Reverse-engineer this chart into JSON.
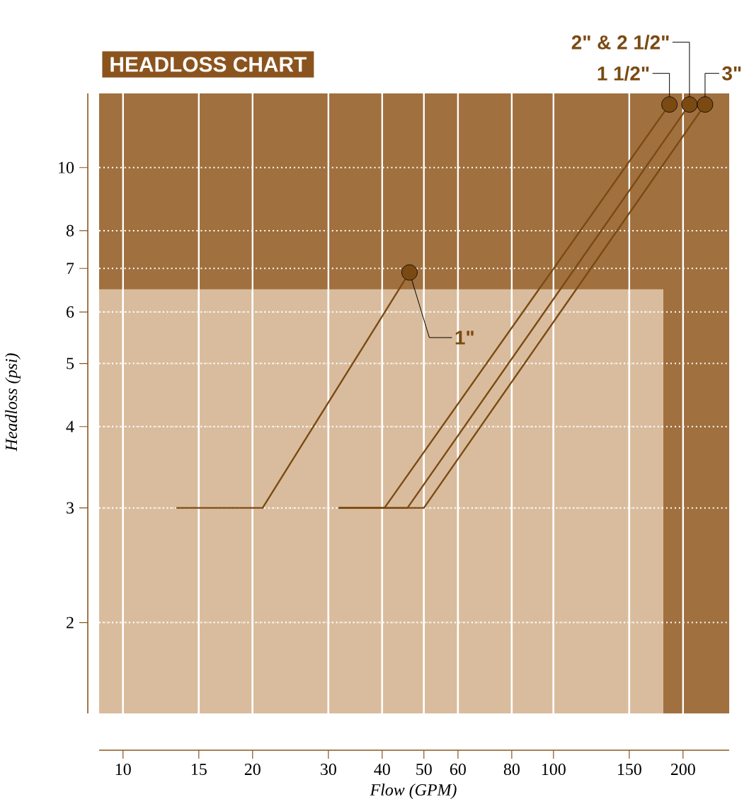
{
  "chart_data": {
    "type": "line",
    "title": "HEADLOSS CHART",
    "xlabel": "Flow (GPM)",
    "ylabel": "Headloss (psi)",
    "log": "xy",
    "xlim": [
      8.8,
      256
    ],
    "ylim": [
      1.45,
      13
    ],
    "xticks": [
      10,
      15,
      20,
      30,
      40,
      50,
      60,
      80,
      100,
      150,
      200
    ],
    "yticks": [
      2,
      3,
      4,
      5,
      6,
      7,
      8,
      10
    ],
    "grid": true,
    "bands": [
      {
        "axis": "y",
        "from": 6.5,
        "to": 13,
        "color": "#a0703f"
      },
      {
        "axis": "x",
        "from": 180,
        "to": 256,
        "color": "#a0703f"
      }
    ],
    "series": [
      {
        "name": "1\"",
        "color": "#7b4a12",
        "x": [
          13.3,
          21.1,
          46.3
        ],
        "values": [
          3,
          3,
          6.9
        ]
      },
      {
        "name": "1 1/2\"",
        "color": "#7b4a12",
        "x": [
          31.7,
          40.5,
          186
        ],
        "values": [
          3,
          3,
          12.5
        ]
      },
      {
        "name": "2\" & 2 1/2\"",
        "color": "#7b4a12",
        "x": [
          31.7,
          45.8,
          207
        ],
        "values": [
          3,
          3,
          12.5
        ]
      },
      {
        "name": "3\"",
        "color": "#7b4a12",
        "x": [
          31.7,
          50,
          225
        ],
        "values": [
          3,
          3,
          12.5
        ]
      }
    ]
  }
}
